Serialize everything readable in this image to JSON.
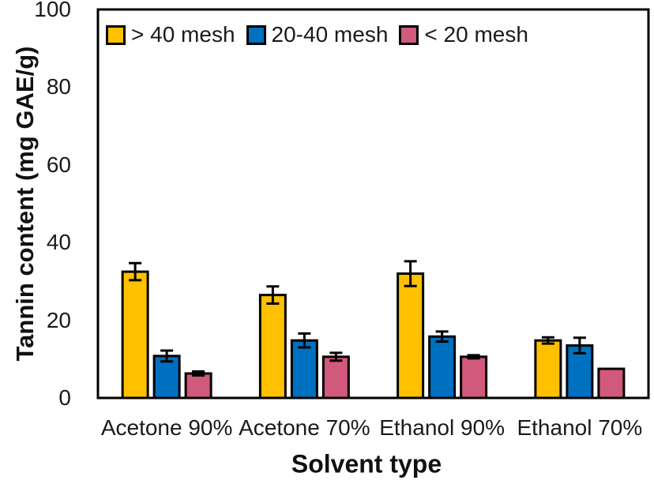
{
  "figure": {
    "background": "#ffffff",
    "text_color": "#1a1a1a"
  },
  "chart_data": {
    "type": "bar",
    "title": "",
    "xlabel": "Solvent type",
    "ylabel": "Tannin content (mg GAE/g)",
    "categories": [
      "Acetone 90%",
      "Acetone 70%",
      "Ethanol 90%",
      "Ethanol 70%"
    ],
    "series": [
      {
        "name": "> 40 mesh",
        "color": "#FFC000",
        "values": [
          32.5,
          26.5,
          32.0,
          14.8
        ],
        "errors": [
          2.2,
          2.2,
          3.2,
          0.8
        ]
      },
      {
        "name": "20-40 mesh",
        "color": "#0070C0",
        "values": [
          10.8,
          14.8,
          15.8,
          13.5
        ],
        "errors": [
          1.4,
          1.8,
          1.3,
          2.0
        ]
      },
      {
        "name": "< 20 mesh",
        "color": "#D1597B",
        "values": [
          6.3,
          10.6,
          10.6,
          7.5
        ],
        "errors": [
          0.5,
          1.0,
          0.4,
          0.0
        ]
      }
    ],
    "ylim": [
      0,
      100
    ],
    "yticks": [
      0,
      20,
      40,
      60,
      80,
      100
    ],
    "grid": false,
    "legend_position": "top-left-inside",
    "bar_outline_color": "#000000",
    "error_bar_color": "#000000",
    "plot_border_color": "#000000"
  }
}
